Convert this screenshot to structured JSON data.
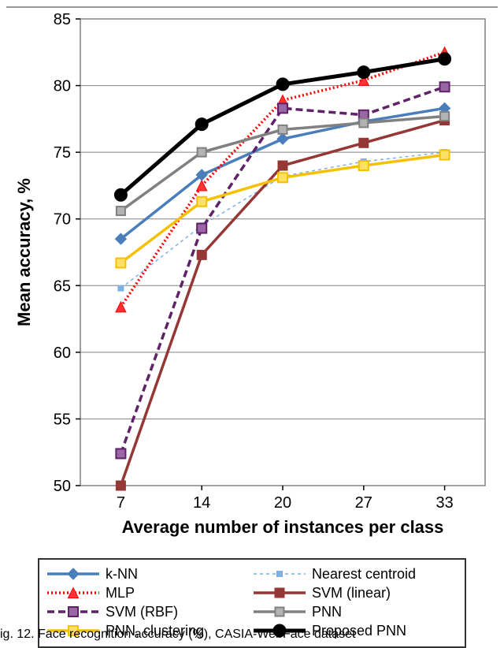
{
  "chart": {
    "type": "line",
    "background_color": "#ffffff",
    "plot_border_color": "#808080",
    "grid_color": "#808080",
    "x": {
      "title": "Average number of instances per class",
      "categories": [
        7,
        14,
        20,
        27,
        33
      ],
      "label_fontsize": 20,
      "title_fontsize": 22
    },
    "y": {
      "title": "Mean accuracy, %",
      "min": 50,
      "max": 85,
      "tick_step": 5,
      "label_fontsize": 20,
      "title_fontsize": 22
    },
    "series": [
      {
        "name": "k-NN",
        "color": "#4a7ebb",
        "line_width": 3.5,
        "dash": "none",
        "marker": "diamond",
        "marker_size": 14,
        "marker_fill": "#4a7ebb",
        "values": [
          68.5,
          73.3,
          76.0,
          77.3,
          78.3
        ]
      },
      {
        "name": "Nearest centroid",
        "color": "#7eb1e6",
        "line_width": 1.5,
        "dash": "4 4",
        "marker": "square-small",
        "marker_size": 7,
        "marker_fill": "#7eb1e6",
        "values": [
          64.8,
          69.5,
          73.2,
          74.3,
          75.0
        ]
      },
      {
        "name": "MLP",
        "color": "#ff0000",
        "line_width": 3.5,
        "dash": "2 3",
        "marker": "triangle",
        "marker_size": 13,
        "marker_fill": "#ff3333",
        "values": [
          63.4,
          72.5,
          78.9,
          80.4,
          82.5
        ]
      },
      {
        "name": "SVM (linear)",
        "color": "#953735",
        "line_width": 3.5,
        "dash": "none",
        "marker": "square-outline",
        "marker_size": 11,
        "marker_fill": "#953735",
        "values": [
          50.0,
          67.3,
          74.0,
          75.7,
          77.4
        ]
      },
      {
        "name": "SVM (RBF)",
        "color": "#5f2167",
        "line_width": 3.5,
        "dash": "9 5",
        "marker": "square-outline",
        "marker_size": 12,
        "marker_fill": "#9966a6",
        "values": [
          52.4,
          69.3,
          78.3,
          77.8,
          79.9
        ]
      },
      {
        "name": "PNN",
        "color": "#808080",
        "line_width": 3.5,
        "dash": "none",
        "marker": "square-outline",
        "marker_size": 11,
        "marker_fill": "#b3b3b3",
        "values": [
          70.6,
          75.0,
          76.7,
          77.2,
          77.7
        ]
      },
      {
        "name": "PNN, clustering",
        "color": "#f5c000",
        "line_width": 3.5,
        "dash": "none",
        "marker": "square-outline",
        "marker_size": 12,
        "marker_fill": "#ffe066",
        "values": [
          66.7,
          71.3,
          73.1,
          74.0,
          74.8
        ]
      },
      {
        "name": "Proposed PNN",
        "color": "#000000",
        "line_width": 5,
        "dash": "none",
        "marker": "circle",
        "marker_size": 16,
        "marker_fill": "#000000",
        "values": [
          71.8,
          77.1,
          80.1,
          81.0,
          82.0
        ]
      }
    ]
  },
  "caption": "ig. 12. Face recognition accuracy (%), CASIA-WebFace dataset"
}
